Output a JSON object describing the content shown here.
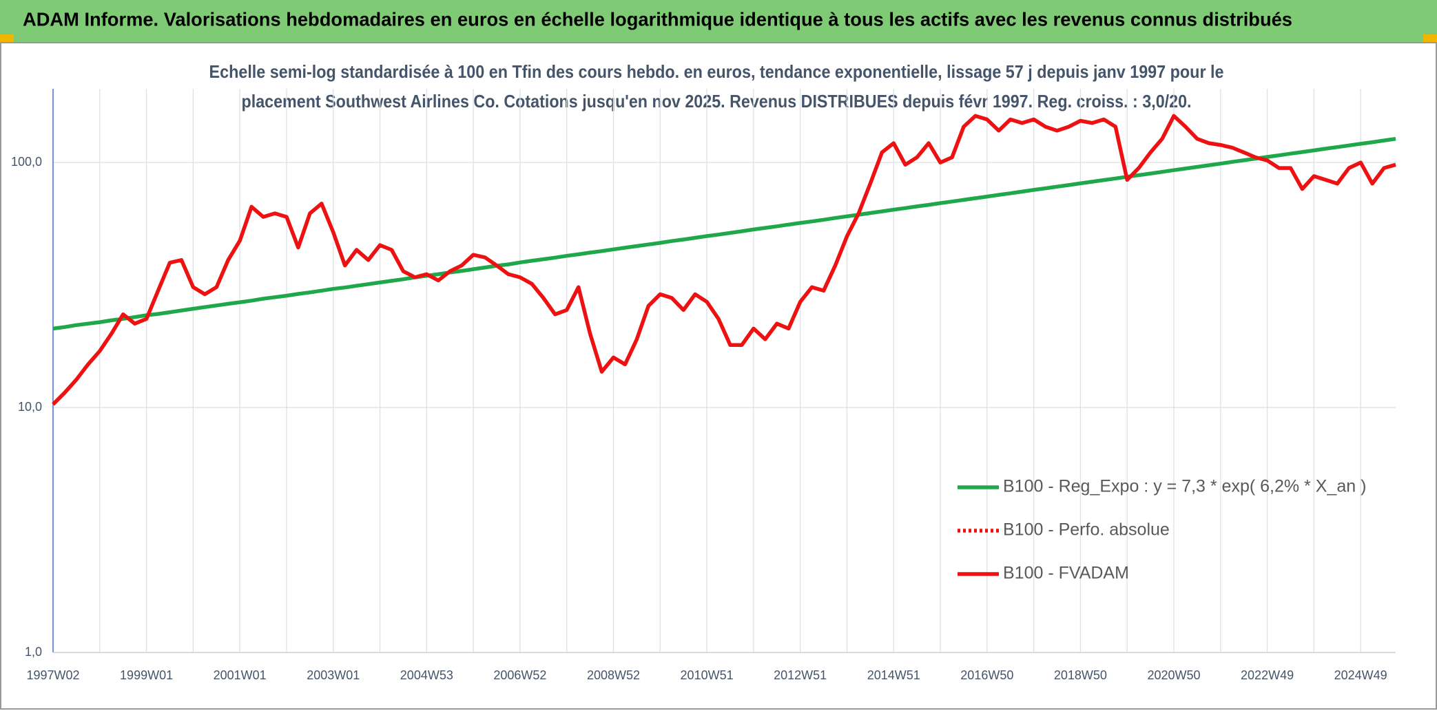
{
  "chart_data": {
    "type": "line",
    "title": "ADAM Informe. Valorisations hebdomadaires en euros en échelle logarithmique identique à tous les actifs avec les revenus connus distribués",
    "subtitle": [
      "Echelle semi-log standardisée à 100 en Tfin des cours hebdo. en euros, tendance exponentielle, lissage 57 j depuis janv 1997 pour le",
      "placement Southwest Airlines Co. Cotations jusqu'en nov 2025. Revenus DISTRIBUES depuis févr 1997. Reg. croiss. : 3,0/20."
    ],
    "log_scale": true,
    "grid": true,
    "legend": "right",
    "ylim": [
      1,
      200
    ],
    "yticks": [
      {
        "value": 1,
        "label": "1,0"
      },
      {
        "value": 10,
        "label": "10,0"
      },
      {
        "value": 100,
        "label": "100,0"
      }
    ],
    "categories": [
      "1997W02",
      null,
      null,
      null,
      null,
      null,
      null,
      null,
      "1999W01",
      null,
      null,
      null,
      null,
      null,
      null,
      null,
      "2001W01",
      null,
      null,
      null,
      null,
      null,
      null,
      null,
      "2003W01",
      null,
      null,
      null,
      null,
      null,
      null,
      null,
      "2004W53",
      null,
      null,
      null,
      null,
      null,
      null,
      null,
      "2006W52",
      null,
      null,
      null,
      null,
      null,
      null,
      null,
      "2008W52",
      null,
      null,
      null,
      null,
      null,
      null,
      null,
      "2010W51",
      null,
      null,
      null,
      null,
      null,
      null,
      null,
      "2012W51",
      null,
      null,
      null,
      null,
      null,
      null,
      null,
      "2014W51",
      null,
      null,
      null,
      null,
      null,
      null,
      null,
      "2016W50",
      null,
      null,
      null,
      null,
      null,
      null,
      null,
      "2018W50",
      null,
      null,
      null,
      null,
      null,
      null,
      null,
      "2020W50",
      null,
      null,
      null,
      null,
      null,
      null,
      null,
      "2022W49",
      null,
      null,
      null,
      null,
      null,
      null,
      null,
      "2024W49",
      null,
      null,
      null
    ],
    "series": [
      {
        "name": "B100 - Reg_Expo : y = 7,3 * exp( 6,2% *  X_an )",
        "color": "#1fa84a",
        "style": "solid",
        "values": [
          21.0,
          21.3,
          21.7,
          22.0,
          22.3,
          22.7,
          23.0,
          23.4,
          23.8,
          24.1,
          24.5,
          24.9,
          25.3,
          25.7,
          26.1,
          26.5,
          26.9,
          27.3,
          27.8,
          28.2,
          28.6,
          29.1,
          29.5,
          30.0,
          30.5,
          30.9,
          31.4,
          31.9,
          32.4,
          32.9,
          33.4,
          34.0,
          34.5,
          35.0,
          35.6,
          36.1,
          36.7,
          37.3,
          37.9,
          38.4,
          39.1,
          39.7,
          40.3,
          40.9,
          41.6,
          42.2,
          42.9,
          43.5,
          44.2,
          44.9,
          45.6,
          46.3,
          47.0,
          47.8,
          48.5,
          49.3,
          50.1,
          50.8,
          51.6,
          52.4,
          53.3,
          54.1,
          54.9,
          55.8,
          56.7,
          57.5,
          58.4,
          59.4,
          60.3,
          61.2,
          62.2,
          63.2,
          64.2,
          65.2,
          66.2,
          67.2,
          68.3,
          69.3,
          70.4,
          71.5,
          72.6,
          73.8,
          74.9,
          76.1,
          77.3,
          78.5,
          79.7,
          80.9,
          82.2,
          83.5,
          84.8,
          86.1,
          87.5,
          88.8,
          90.2,
          91.6,
          93.1,
          94.5,
          96.0,
          97.5,
          99.0,
          100.6,
          102.2,
          103.7,
          105.4,
          107.0,
          108.7,
          110.4,
          112.1,
          113.9,
          115.6,
          117.4,
          119.3,
          121.1,
          123.0,
          125.0
        ]
      },
      {
        "name": "B100 - Perfo. absolue",
        "color": "#ee1111",
        "style": "dotted"
      },
      {
        "name": "B100 - FVADAM",
        "color": "#ee1111",
        "style": "solid",
        "values": [
          10.3,
          11.5,
          13,
          15,
          17,
          20,
          24,
          22,
          23,
          30,
          39,
          40,
          31,
          29,
          31,
          40,
          48,
          66,
          60,
          62,
          60,
          45,
          62,
          68,
          52,
          38,
          44,
          40,
          46,
          44,
          36,
          34,
          35,
          33,
          36,
          38,
          42,
          41,
          38,
          35,
          34,
          32,
          28,
          24,
          25,
          31,
          20,
          14,
          16,
          15,
          19,
          26,
          29,
          28,
          25,
          29,
          27,
          23,
          18,
          18,
          21,
          19,
          22,
          21,
          27,
          31,
          30,
          38,
          50,
          62,
          82,
          110,
          120,
          98,
          105,
          120,
          100,
          105,
          140,
          155,
          150,
          135,
          150,
          145,
          150,
          140,
          135,
          140,
          148,
          145,
          150,
          140,
          85,
          95,
          110,
          125,
          155,
          140,
          125,
          120,
          118,
          115,
          110,
          105,
          102,
          95,
          95,
          78,
          88,
          85,
          82,
          95,
          100,
          82,
          95,
          98
        ]
      }
    ]
  }
}
